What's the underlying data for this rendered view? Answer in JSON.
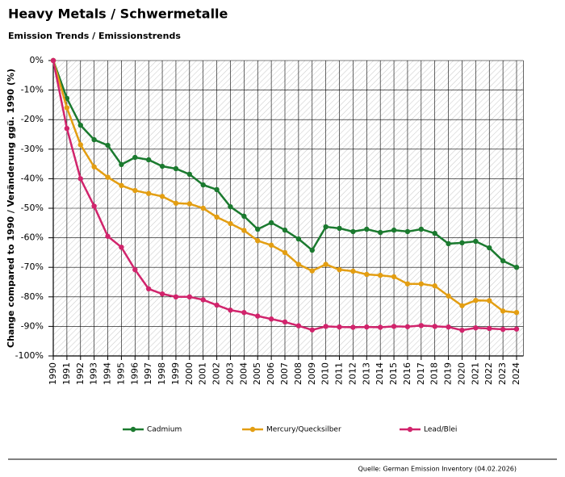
{
  "chart_data": {
    "type": "line",
    "title": "Heavy Metals / Schwermetalle",
    "subtitle": "Emission Trends / Emissionstrends",
    "y_label": "Change compared to 1990 / Veränderung ggü. 1990 (%)",
    "source": "Quelle: German Emission Inventory (04.02.2026)",
    "categories": [
      "1990",
      "1991",
      "1992",
      "1993",
      "1994",
      "1995",
      "1996",
      "1997",
      "1998",
      "1999",
      "2000",
      "2001",
      "2002",
      "2003",
      "2004",
      "2005",
      "2006",
      "2007",
      "2008",
      "2009",
      "2010",
      "2011",
      "2012",
      "2013",
      "2014",
      "2015",
      "2016",
      "2017",
      "2018",
      "2019",
      "2020",
      "2021",
      "2022",
      "2023",
      "2024"
    ],
    "series": [
      {
        "name": "Cadmium",
        "color": "#1b7a2f",
        "values": [
          0,
          -12.8,
          -21.9,
          -26.8,
          -28.7,
          -35.2,
          -32.8,
          -33.6,
          -35.8,
          -36.6,
          -38.5,
          -42.1,
          -43.7,
          -49.5,
          -52.7,
          -57.1,
          -54.9,
          -57.4,
          -60.4,
          -64.2,
          -56.3,
          -56.8,
          -57.9,
          -57.1,
          -58.2,
          -57.4,
          -57.9,
          -57.1,
          -58.5,
          -62,
          -61.7,
          -61.2,
          -63.4,
          -67.8,
          -70
        ]
      },
      {
        "name": "Mercury/Quecksilber",
        "color": "#e39e12",
        "values": [
          0,
          -16,
          -28.5,
          -36,
          -39.5,
          -42.3,
          -44,
          -45,
          -46,
          -48.3,
          -48.5,
          -50,
          -53,
          -55.2,
          -57.5,
          -61,
          -62.5,
          -65,
          -69,
          -71.2,
          -69,
          -70.8,
          -71.3,
          -72.4,
          -72.7,
          -73.2,
          -75.6,
          -75.6,
          -76.3,
          -79.7,
          -83,
          -81.2,
          -81.3,
          -84.8,
          -85.3
        ]
      },
      {
        "name": "Lead/Blei",
        "color": "#d1246c",
        "values": [
          0,
          -23,
          -40,
          -49.3,
          -59.5,
          -63.2,
          -70.8,
          -77.3,
          -79,
          -80,
          -80,
          -81,
          -82.8,
          -84.5,
          -85.3,
          -86.5,
          -87.5,
          -88.5,
          -89.8,
          -91.2,
          -90,
          -90.2,
          -90.3,
          -90.2,
          -90.3,
          -90,
          -90.1,
          -89.7,
          -90,
          -90.2,
          -91.3,
          -90.5,
          -90.7,
          -91,
          -90.9
        ]
      }
    ],
    "ylim": [
      -100,
      0
    ],
    "yticks": [
      {
        "value": 0,
        "label": "0%"
      },
      {
        "value": -10,
        "label": "-10%"
      },
      {
        "value": -20,
        "label": "-20%"
      },
      {
        "value": -30,
        "label": "-30%"
      },
      {
        "value": -40,
        "label": "-40%"
      },
      {
        "value": -50,
        "label": "-50%"
      },
      {
        "value": -60,
        "label": "-60%"
      },
      {
        "value": -70,
        "label": "-70%"
      },
      {
        "value": -80,
        "label": "-80%"
      },
      {
        "value": -90,
        "label": "-90%"
      },
      {
        "value": -100,
        "label": "-100%"
      }
    ],
    "grid": true
  }
}
